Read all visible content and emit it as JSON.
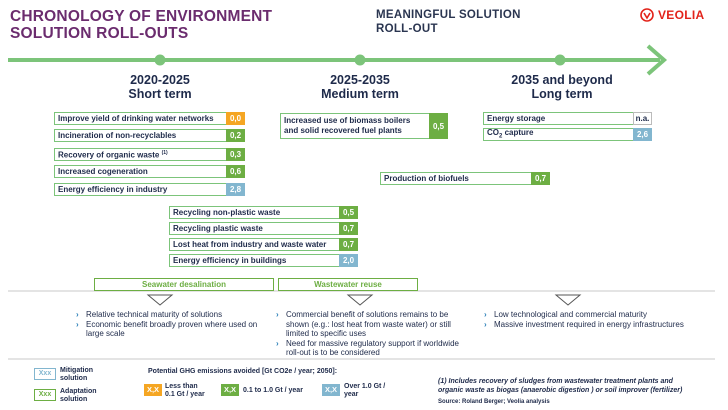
{
  "header": {
    "title_line1": "CHRONOLOGY OF ENVIRONMENT",
    "title_line2": "SOLUTION ROLL-OUTS",
    "subtitle_line1": "MEANINGFUL SOLUTION",
    "subtitle_line2": "ROLL-OUT",
    "logo_text": "VEOLIA"
  },
  "periods": [
    {
      "years": "2020-2025",
      "term": "Short term"
    },
    {
      "years": "2025-2035",
      "term": "Medium term"
    },
    {
      "years": "2035 and beyond",
      "term": "Long term"
    }
  ],
  "solutions": [
    {
      "label": "Improve yield of drinking water networks",
      "value": "0,0",
      "level": "low"
    },
    {
      "label": "Incineration of non-recyclables",
      "value": "0,2",
      "level": "mid"
    },
    {
      "label": "Recovery of organic waste",
      "sup": "(1)",
      "value": "0,3",
      "level": "mid"
    },
    {
      "label": "Increased cogeneration",
      "value": "0,6",
      "level": "mid"
    },
    {
      "label": "Energy efficiency in industry",
      "value": "2,8",
      "level": "high"
    },
    {
      "label": "Recycling non-plastic waste",
      "value": "0,5",
      "level": "mid"
    },
    {
      "label": "Recycling plastic waste",
      "value": "0,7",
      "level": "mid"
    },
    {
      "label": "Lost heat from industry and waste water",
      "value": "0,7",
      "level": "mid"
    },
    {
      "label": "Energy efficiency in buildings",
      "value": "2,0",
      "level": "high"
    },
    {
      "label_line1": "Increased use of biomass boilers",
      "label_line2": "and solid recovered fuel plants",
      "value": "0,5",
      "level": "mid"
    },
    {
      "label": "Production of biofuels",
      "value": "0,7",
      "level": "mid"
    },
    {
      "label": "Energy storage",
      "value": "n.a.",
      "level": "na"
    },
    {
      "label_pre": "CO",
      "label_sub": "2",
      "label_post": " capture",
      "value": "2,6",
      "level": "high"
    }
  ],
  "adaptation": [
    {
      "label": "Seawater desalination"
    },
    {
      "label": "Wastewater reuse"
    }
  ],
  "notes": {
    "short": [
      "Relative technical maturity of solutions",
      "Economic benefit broadly proven where used on large scale"
    ],
    "medium": [
      "Commercial benefit of solutions remains to be shown (e.g.: lost heat from waste water) or still limited to specific uses",
      "Need for massive regulatory support if worldwide roll-out is to be considered"
    ],
    "long": [
      "Low technological and commercial maturity",
      "Massive investment required in energy infrastructures"
    ]
  },
  "legend": {
    "mitigation_box": "Xxx",
    "mitigation_line1": "Mitigation",
    "mitigation_line2": "solution",
    "adaptation_box": "Xxx",
    "adaptation_line1": "Adaptation",
    "adaptation_line2": "solution",
    "ghg_title": "Potential GHG emissions avoided [Gt CO2e / year; 2050]:",
    "chip_low": "X,X",
    "low_line1": "Less than",
    "low_line2": "0.1 Gt / year",
    "chip_mid": "X,X",
    "mid_label": "0.1 to 1.0 Gt / year",
    "chip_high": "X,X",
    "high_line1": "Over 1.0 Gt /",
    "high_line2": "year"
  },
  "footnote": {
    "line1": "(1) Includes recovery of sludges from wastewater treatment plants and",
    "line2": "organic waste as biogas (anaerobic digestion ) or soil improver (fertilizer)",
    "source": "Source: Roland Berger; Veolia analysis"
  },
  "colors": {
    "title": "#6b2c6e",
    "arrow": "#7cc47a",
    "low": "#f5a623",
    "mid": "#6dae43",
    "high": "#82b6cf",
    "brand": "#e2231a"
  }
}
